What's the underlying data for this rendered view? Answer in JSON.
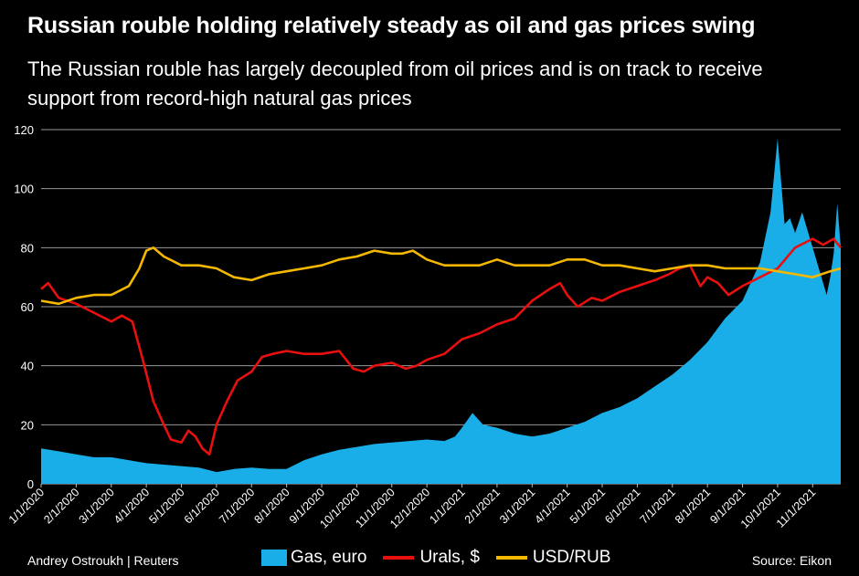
{
  "header": {
    "title": "Russian rouble holding relatively steady as oil and gas prices swing",
    "subtitle": "The Russian rouble has largely decoupled from oil prices and is on track to receive support from record-high natural gas prices"
  },
  "footer": {
    "credit": "Andrey Ostroukh | Reuters",
    "source": "Source: Eikon"
  },
  "chart_data": {
    "type": "area",
    "title": "Russian rouble holding relatively steady as oil and gas prices swing",
    "ylim": [
      0,
      120
    ],
    "yticks": [
      "0",
      "20",
      "40",
      "60",
      "80",
      "100",
      "120"
    ],
    "grid": true,
    "legend_position": "bottom",
    "xlim": [
      0,
      22.8
    ],
    "x_tick_labels": [
      "1/1/2020",
      "2/1/2020",
      "3/1/2020",
      "4/1/2020",
      "5/1/2020",
      "6/1/2020",
      "7/1/2020",
      "8/1/2020",
      "9/1/2020",
      "10/1/2020",
      "11/1/2020",
      "12/1/2020",
      "1/1/2021",
      "2/1/2021",
      "3/1/2021",
      "4/1/2021",
      "5/1/2021",
      "6/1/2021",
      "7/1/2021",
      "8/1/2021",
      "9/1/2021",
      "10/1/2021",
      "11/1/2021"
    ],
    "x_unit": "months since 1/1/2020",
    "series": [
      {
        "name": "Gas, euro",
        "kind": "area",
        "color": "#1aaee8",
        "x": [
          0,
          0.5,
          1,
          1.5,
          2,
          2.5,
          3,
          3.5,
          4,
          4.5,
          5,
          5.5,
          6,
          6.5,
          7,
          7.5,
          8,
          8.5,
          9,
          9.5,
          10,
          10.5,
          11,
          11.5,
          11.8,
          12,
          12.3,
          12.6,
          13,
          13.5,
          14,
          14.5,
          15,
          15.5,
          16,
          16.5,
          17,
          17.5,
          18,
          18.5,
          19,
          19.5,
          20,
          20.5,
          20.8,
          21,
          21.2,
          21.35,
          21.5,
          21.7,
          22,
          22.2,
          22.4,
          22.5,
          22.6,
          22.7,
          22.8
        ],
        "values": [
          12,
          11,
          10,
          9,
          9,
          8,
          7,
          6.5,
          6,
          5.5,
          4,
          5,
          5.5,
          5,
          5,
          8,
          10,
          11.5,
          12.5,
          13.5,
          14,
          14.5,
          15,
          14.5,
          16,
          19,
          24,
          20,
          19,
          17,
          16,
          17,
          19,
          21,
          24,
          26,
          29,
          33,
          37,
          42,
          48,
          56,
          62,
          75,
          92,
          117,
          88,
          90,
          85,
          92,
          80,
          72,
          64,
          70,
          78,
          95,
          80
        ]
      },
      {
        "name": "Urals, $",
        "kind": "line",
        "color": "#e8100e",
        "x": [
          0,
          0.2,
          0.5,
          1,
          1.5,
          2,
          2.3,
          2.6,
          2.9,
          3.2,
          3.5,
          3.7,
          4,
          4.2,
          4.4,
          4.6,
          4.8,
          5,
          5.3,
          5.6,
          6,
          6.3,
          6.6,
          7,
          7.5,
          8,
          8.5,
          8.9,
          9.2,
          9.5,
          10,
          10.4,
          10.7,
          11,
          11.5,
          12,
          12.5,
          13,
          13.5,
          14,
          14.5,
          14.8,
          15,
          15.3,
          15.7,
          16,
          16.5,
          17,
          17.5,
          17.9,
          18.2,
          18.5,
          18.8,
          19,
          19.3,
          19.6,
          20,
          20.5,
          21,
          21.5,
          22,
          22.3,
          22.6,
          22.8
        ],
        "values": [
          66,
          68,
          63,
          61,
          58,
          55,
          57,
          55,
          42,
          28,
          20,
          15,
          14,
          18,
          16,
          12,
          10,
          20,
          28,
          35,
          38,
          43,
          44,
          45,
          44,
          44,
          45,
          39,
          38,
          40,
          41,
          39,
          40,
          42,
          44,
          49,
          51,
          54,
          56,
          62,
          66,
          68,
          64,
          60,
          63,
          62,
          65,
          67,
          69,
          71,
          73,
          74,
          67,
          70,
          68,
          64,
          67,
          70,
          73,
          80,
          83,
          81,
          83,
          80
        ]
      },
      {
        "name": "USD/RUB",
        "kind": "line",
        "color": "#f5b800",
        "x": [
          0,
          0.5,
          1,
          1.5,
          2,
          2.5,
          2.8,
          3,
          3.2,
          3.5,
          4,
          4.5,
          5,
          5.5,
          6,
          6.5,
          7,
          7.5,
          8,
          8.5,
          9,
          9.5,
          10,
          10.3,
          10.6,
          11,
          11.5,
          12,
          12.5,
          13,
          13.5,
          14,
          14.5,
          15,
          15.5,
          16,
          16.5,
          17,
          17.5,
          18,
          18.5,
          19,
          19.5,
          20,
          20.5,
          21,
          21.5,
          22,
          22.5,
          22.8
        ],
        "values": [
          62,
          61,
          63,
          64,
          64,
          67,
          73,
          79,
          80,
          77,
          74,
          74,
          73,
          70,
          69,
          71,
          72,
          73,
          74,
          76,
          77,
          79,
          78,
          78,
          79,
          76,
          74,
          74,
          74,
          76,
          74,
          74,
          74,
          76,
          76,
          74,
          74,
          73,
          72,
          73,
          74,
          74,
          73,
          73,
          73,
          72,
          71,
          70,
          72,
          73
        ]
      }
    ]
  }
}
